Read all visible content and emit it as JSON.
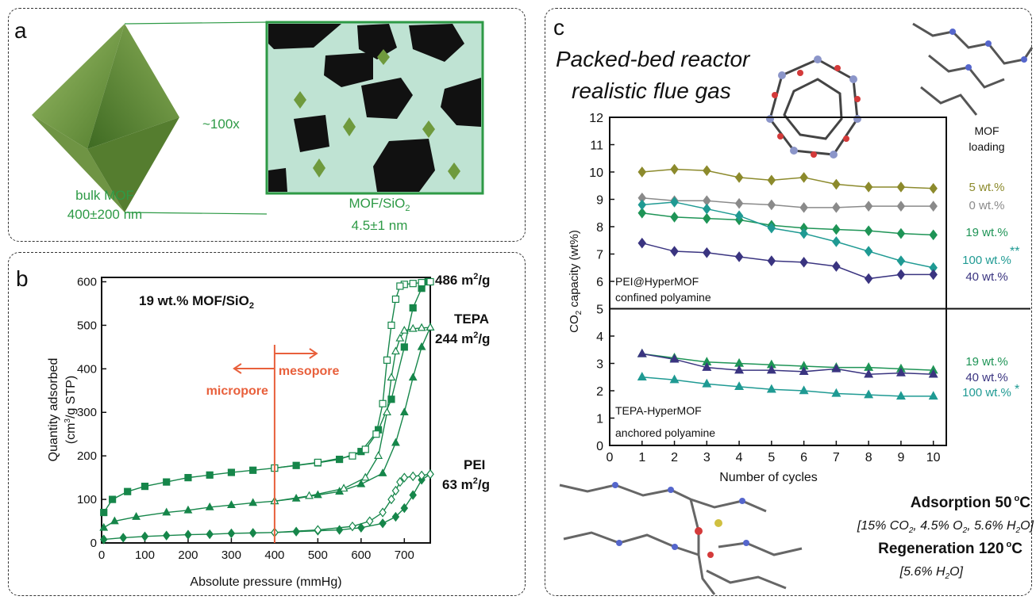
{
  "panel_a": {
    "letter": "a",
    "magnification": "~100x",
    "bulk_label": "bulk MOF",
    "bulk_size": "400±200 nm",
    "composite_label": "MOF/SiO",
    "composite_label_sub": "2",
    "composite_size": "4.5±1 nm",
    "colors": {
      "accent": "#2e9a46",
      "mof": "#6f9a3d",
      "silica": "#bfe3d3",
      "pore": "#111111"
    }
  },
  "panel_b": {
    "letter": "b",
    "sample": "19 wt.% MOF/SiO",
    "sample_sub": "2",
    "micropore": "micropore",
    "mesopore": "mesopore",
    "labels": {
      "top_value": "486 m",
      "top_unit": "/g",
      "tepa": "TEPA",
      "tepa_value": "244 m",
      "tepa_unit": "/g",
      "pei": "PEI",
      "pei_value": "63 m",
      "pei_unit": "/g",
      "sup": "2"
    },
    "colors": {
      "series": "#16864a",
      "divider": "#e8603c"
    }
  },
  "panel_c": {
    "letter": "c",
    "title_line1": "Packed-bed reactor",
    "title_line2": "realistic flue gas",
    "legend_title_line1": "MOF",
    "legend_title_line2": "loading",
    "upper_note_line1": "PEI@HyperMOF",
    "upper_note_line2": "confined polyamine",
    "lower_note_line1": "TEPA-HyperMOF",
    "lower_note_line2": "anchored polyamine",
    "adsorption_title": "Adsorption 50",
    "adsorption_unit": "C",
    "adsorption_conditions": "[15% CO",
    "ads_c2": ", 4.5% O",
    "ads_c3": ", 5.6% H",
    "ads_c4": "O]",
    "regeneration_title": "Regeneration 120",
    "regeneration_unit": "C",
    "regeneration_conditions": "[5.6% H",
    "regen_c2": "O]",
    "degree": "o",
    "sub2": "2",
    "star2": "**",
    "star1": "*"
  },
  "chart_data": [
    {
      "type": "line",
      "xlabel": "Absolute pressure (mmHg)",
      "ylabel": "Quantity adsorbed",
      "ylabel2": "(cm",
      "ylabel2_sup": "3",
      "ylabel2_tail": "/g STP)",
      "xlim": [
        0,
        760
      ],
      "ylim": [
        0,
        610
      ],
      "xticks": [
        0,
        100,
        200,
        300,
        400,
        500,
        600,
        700
      ],
      "yticks": [
        0,
        100,
        200,
        300,
        400,
        500,
        600
      ],
      "series": [
        {
          "name": "486 m2/g",
          "marker": "square",
          "adsorption": [
            [
              5,
              70
            ],
            [
              25,
              100
            ],
            [
              60,
              118
            ],
            [
              100,
              130
            ],
            [
              150,
              140
            ],
            [
              200,
              150
            ],
            [
              250,
              156
            ],
            [
              300,
              162
            ],
            [
              350,
              167
            ],
            [
              400,
              172
            ],
            [
              450,
              178
            ],
            [
              500,
              184
            ],
            [
              550,
              192
            ],
            [
              600,
              210
            ],
            [
              640,
              260
            ],
            [
              670,
              330
            ],
            [
              700,
              450
            ],
            [
              720,
              540
            ],
            [
              740,
              585
            ],
            [
              755,
              600
            ]
          ],
          "desorption": [
            [
              760,
              600
            ],
            [
              740,
              598
            ],
            [
              720,
              596
            ],
            [
              700,
              594
            ],
            [
              690,
              590
            ],
            [
              680,
              560
            ],
            [
              670,
              500
            ],
            [
              660,
              420
            ],
            [
              650,
              320
            ],
            [
              635,
              250
            ],
            [
              610,
              215
            ],
            [
              580,
              200
            ],
            [
              500,
              185
            ],
            [
              400,
              172
            ]
          ]
        },
        {
          "name": "TEPA",
          "marker": "triangle",
          "adsorption": [
            [
              5,
              35
            ],
            [
              30,
              50
            ],
            [
              80,
              60
            ],
            [
              150,
              70
            ],
            [
              200,
              75
            ],
            [
              250,
              82
            ],
            [
              300,
              87
            ],
            [
              350,
              92
            ],
            [
              400,
              96
            ],
            [
              450,
              102
            ],
            [
              500,
              110
            ],
            [
              550,
              118
            ],
            [
              600,
              135
            ],
            [
              650,
              160
            ],
            [
              680,
              230
            ],
            [
              700,
              300
            ],
            [
              720,
              380
            ],
            [
              740,
              450
            ],
            [
              760,
              495
            ]
          ],
          "desorption": [
            [
              760,
              495
            ],
            [
              740,
              494
            ],
            [
              720,
              492
            ],
            [
              700,
              488
            ],
            [
              690,
              470
            ],
            [
              680,
              440
            ],
            [
              670,
              380
            ],
            [
              660,
              300
            ],
            [
              640,
              200
            ],
            [
              610,
              150
            ],
            [
              560,
              125
            ],
            [
              480,
              108
            ],
            [
              400,
              96
            ]
          ]
        },
        {
          "name": "PEI",
          "marker": "diamond",
          "adsorption": [
            [
              5,
              8
            ],
            [
              50,
              12
            ],
            [
              100,
              15
            ],
            [
              150,
              17
            ],
            [
              200,
              19
            ],
            [
              250,
              20
            ],
            [
              300,
              22
            ],
            [
              350,
              23
            ],
            [
              400,
              24
            ],
            [
              450,
              26
            ],
            [
              500,
              28
            ],
            [
              550,
              30
            ],
            [
              600,
              35
            ],
            [
              650,
              45
            ],
            [
              680,
              60
            ],
            [
              700,
              80
            ],
            [
              720,
              110
            ],
            [
              740,
              145
            ],
            [
              760,
              158
            ]
          ],
          "desorption": [
            [
              760,
              158
            ],
            [
              740,
              155
            ],
            [
              720,
              153
            ],
            [
              700,
              150
            ],
            [
              690,
              140
            ],
            [
              680,
              120
            ],
            [
              670,
              100
            ],
            [
              650,
              70
            ],
            [
              620,
              50
            ],
            [
              580,
              38
            ],
            [
              500,
              30
            ],
            [
              400,
              24
            ]
          ]
        }
      ],
      "divider_x": 400
    },
    {
      "type": "line",
      "xlabel": "Number of cycles",
      "ylabel": "CO",
      "ylabel_sub": "2",
      "ylabel_tail": " capacity (wt%)",
      "xlim": [
        0,
        10.4
      ],
      "ylim": [
        0,
        12
      ],
      "xticks": [
        0,
        1,
        2,
        3,
        4,
        5,
        6,
        7,
        8,
        9,
        10
      ],
      "yticks": [
        0,
        1,
        2,
        3,
        4,
        5,
        6,
        7,
        8,
        9,
        10,
        11,
        12
      ],
      "divider_y": 5,
      "x": [
        1,
        2,
        3,
        4,
        5,
        6,
        7,
        8,
        9,
        10
      ],
      "series": [
        {
          "name": "5 wt.%",
          "group": "PEI",
          "marker": "diamond",
          "color": "#8c8a2c",
          "values": [
            10.0,
            10.1,
            10.05,
            9.8,
            9.7,
            9.8,
            9.55,
            9.45,
            9.45,
            9.4
          ]
        },
        {
          "name": "0 wt.%",
          "group": "PEI",
          "marker": "diamond",
          "color": "#8a8a8a",
          "values": [
            9.05,
            8.95,
            8.95,
            8.85,
            8.8,
            8.7,
            8.7,
            8.75,
            8.75,
            8.75
          ]
        },
        {
          "name": "19 wt.%",
          "group": "PEI",
          "marker": "diamond",
          "color": "#1e9456",
          "values": [
            8.5,
            8.35,
            8.3,
            8.25,
            8.05,
            7.95,
            7.9,
            7.85,
            7.75,
            7.7
          ]
        },
        {
          "name": "100 wt.%",
          "group": "PEI",
          "marker": "diamond",
          "color": "#1f9a93",
          "values": [
            8.8,
            8.9,
            8.65,
            8.4,
            7.95,
            7.75,
            7.45,
            7.1,
            6.75,
            6.5
          ]
        },
        {
          "name": "40 wt.%",
          "group": "PEI",
          "marker": "diamond",
          "color": "#3a3480",
          "values": [
            7.4,
            7.1,
            7.05,
            6.9,
            6.75,
            6.7,
            6.55,
            6.1,
            6.25,
            6.25
          ]
        },
        {
          "name": "19 wt.%",
          "group": "TEPA",
          "marker": "triangle",
          "color": "#1e9456",
          "values": [
            3.35,
            3.2,
            3.05,
            3.0,
            2.95,
            2.9,
            2.85,
            2.85,
            2.8,
            2.75
          ]
        },
        {
          "name": "40 wt.%",
          "group": "TEPA",
          "marker": "triangle",
          "color": "#3a3480",
          "values": [
            3.35,
            3.15,
            2.85,
            2.75,
            2.75,
            2.7,
            2.8,
            2.6,
            2.65,
            2.6
          ]
        },
        {
          "name": "100 wt.%",
          "group": "TEPA",
          "marker": "triangle",
          "color": "#1f9a93",
          "values": [
            2.5,
            2.4,
            2.25,
            2.15,
            2.05,
            2.0,
            1.9,
            1.85,
            1.8,
            1.8
          ]
        }
      ]
    }
  ]
}
